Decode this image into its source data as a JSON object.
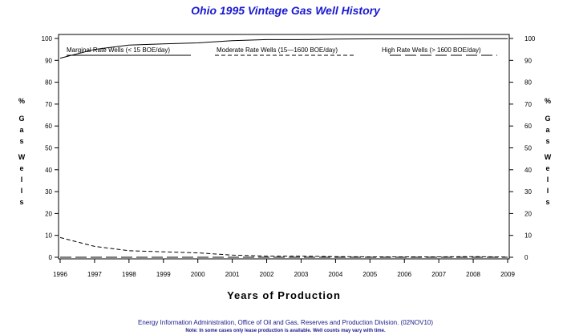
{
  "chart_data": {
    "type": "line",
    "title": "Ohio 1995 Vintage Gas Well History",
    "xlabel": "Years of Production",
    "ylabel_letters": [
      "%",
      "G",
      "a",
      "s",
      "W",
      "e",
      "l",
      "l",
      "s"
    ],
    "x": [
      1996,
      1997,
      1998,
      1999,
      2000,
      2001,
      2002,
      2003,
      2004,
      2005,
      2006,
      2007,
      2008,
      2009
    ],
    "xlim": [
      1996,
      2009
    ],
    "ylim": [
      0,
      100
    ],
    "yticks": [
      0,
      10,
      20,
      30,
      40,
      50,
      60,
      70,
      80,
      90,
      100
    ],
    "grid": false,
    "legend_position": "top",
    "series": [
      {
        "name": "Marginal Rate Wells (<  15 BOE/day)",
        "style": "solid",
        "values": [
          91,
          95,
          97,
          97.5,
          98,
          99,
          99.5,
          99.5,
          99.7,
          99.8,
          99.8,
          99.8,
          99.9,
          99.9
        ]
      },
      {
        "name": "Moderate Rate Wells (15—1600 BOE/day)",
        "style": "short-dash",
        "values": [
          9,
          5,
          3,
          2.5,
          2,
          1,
          0.5,
          0.5,
          0.3,
          0.2,
          0.2,
          0.2,
          0.3,
          0.1
        ]
      },
      {
        "name": "High Rate Wells (> 1600 BOE/day)",
        "style": "long-dash",
        "values": [
          0,
          0,
          0,
          0,
          0,
          0,
          0,
          0,
          0,
          0,
          0,
          0,
          0,
          0
        ]
      }
    ]
  },
  "footer": {
    "source": "Energy Information Administration, Office of Oil and Gas, Reserves and Production Division. (02NOV10)",
    "note": "Note: In some cases only lease production is available. Well counts may vary with time."
  }
}
